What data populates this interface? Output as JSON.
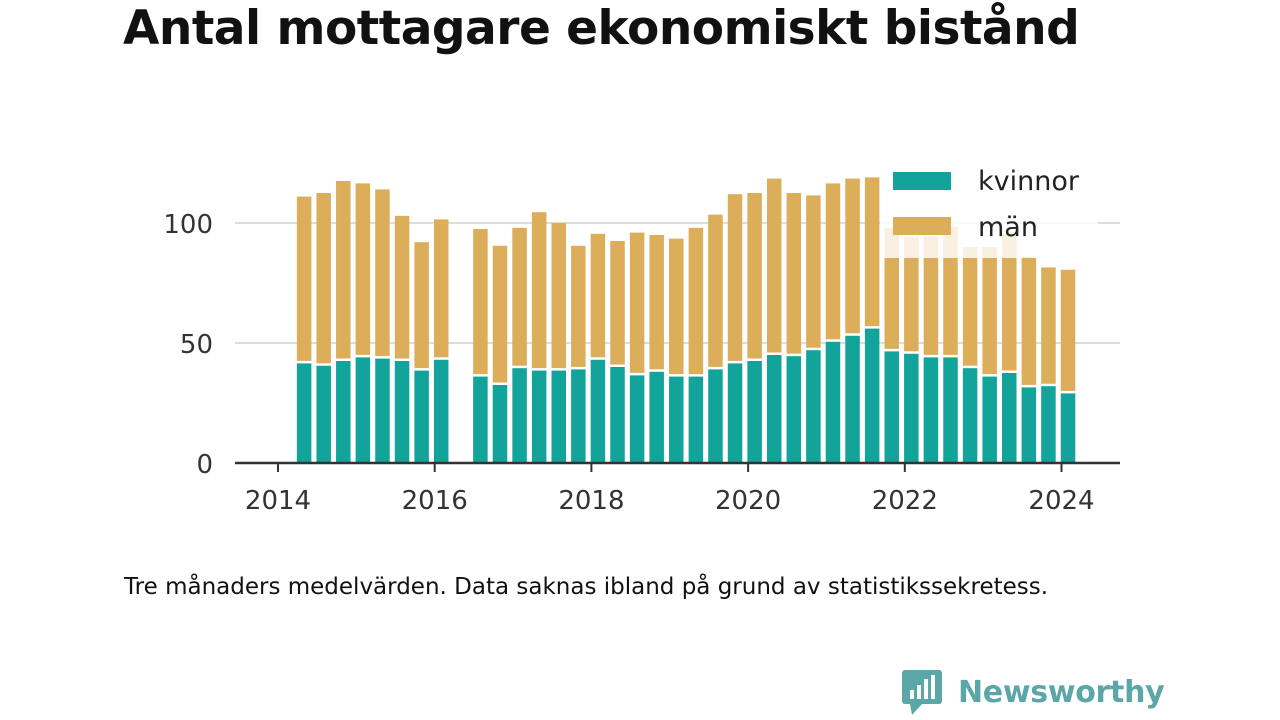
{
  "title": "Antal mottagare ekonomiskt bistånd",
  "note": "Tre månaders medelvärden. Data saknas ibland på grund av statistikssekretess.",
  "brand": {
    "name": "Newsworthy",
    "logo_icon": "newsworthy-bar-chart-bubble-icon",
    "color": "#5ba6a6"
  },
  "colors": {
    "kvinnor": "#12a39a",
    "man": "#dcae5a",
    "grid": "#dddddd",
    "axis": "#333333"
  },
  "chart_data": {
    "type": "bar",
    "stacked": true,
    "x_ticks": [
      "2014",
      "2016",
      "2018",
      "2020",
      "2022",
      "2024"
    ],
    "y_ticks": [
      "0",
      "50",
      "100"
    ],
    "ylim": [
      0,
      125
    ],
    "grid": "horizontal",
    "legend_position": "top-right",
    "x": [
      "2014-05",
      "2014-08",
      "2014-11",
      "2015-02",
      "2015-05",
      "2015-08",
      "2015-11",
      "2016-02",
      "2016-05",
      "2016-08",
      "2016-11",
      "2017-02",
      "2017-05",
      "2017-08",
      "2017-11",
      "2018-02",
      "2018-05",
      "2018-08",
      "2018-11",
      "2019-02",
      "2019-05",
      "2019-08",
      "2019-11",
      "2020-02",
      "2020-05",
      "2020-08",
      "2020-11",
      "2021-02",
      "2021-05",
      "2021-08",
      "2021-11",
      "2022-02",
      "2022-05",
      "2022-08",
      "2022-11",
      "2023-02",
      "2023-05",
      "2023-08",
      "2023-11",
      "2024-02"
    ],
    "series": [
      {
        "name": "kvinnor",
        "color": "#12a39a",
        "values": [
          41.5,
          40.5,
          42.5,
          44,
          43.5,
          42.5,
          38.5,
          43,
          null,
          36,
          32.5,
          39.5,
          38.5,
          38.5,
          39,
          43,
          40,
          36.5,
          38,
          36,
          36,
          39,
          41.5,
          42.5,
          45,
          44.5,
          47,
          50.5,
          53,
          56,
          46.5,
          45.5,
          44,
          44,
          39.5,
          36,
          37.5,
          31.5,
          32,
          29
        ]
      },
      {
        "name": "män",
        "color": "#dcae5a",
        "values": [
          69.5,
          72,
          75,
          72.5,
          70.5,
          60.5,
          53.5,
          58.5,
          null,
          61.5,
          58,
          58.5,
          66,
          61.5,
          51.5,
          52.5,
          52.5,
          59.5,
          57,
          57.5,
          62,
          64.5,
          70.5,
          70,
          73.5,
          68,
          64.5,
          66,
          65.5,
          63,
          51.5,
          48.5,
          50.5,
          54.5,
          50.5,
          54,
          58,
          54.5,
          49.5,
          51.5
        ]
      }
    ]
  }
}
